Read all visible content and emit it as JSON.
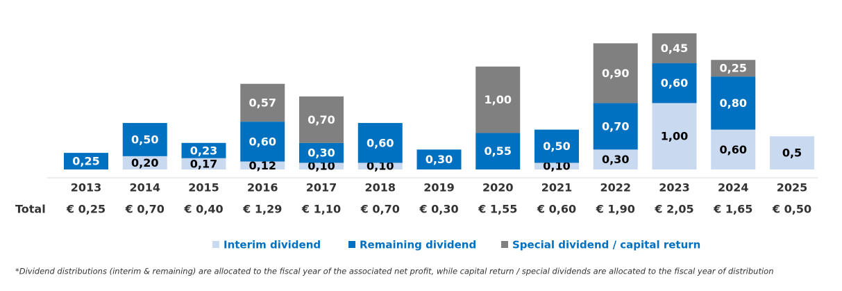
{
  "chart_data": {
    "type": "stacked-bar",
    "categories": [
      "2013",
      "2014",
      "2015",
      "2016",
      "2017",
      "2018",
      "2019",
      "2020",
      "2021",
      "2022",
      "2023",
      "2024",
      "2025"
    ],
    "series": [
      {
        "name": "Interim dividend",
        "color": "#c9daf0",
        "label_color": "#000000",
        "values": [
          null,
          0.2,
          0.17,
          0.12,
          0.1,
          0.1,
          null,
          null,
          0.1,
          0.3,
          1.0,
          0.6,
          0.5
        ],
        "value_labels": [
          null,
          "0,20",
          "0,17",
          "0,12",
          "0,10",
          "0,10",
          null,
          null,
          "0,10",
          "0,30",
          "1,00",
          "0,60",
          "0,5"
        ]
      },
      {
        "name": "Remaining dividend",
        "color": "#0070c0",
        "label_color": "#ffffff",
        "values": [
          0.25,
          0.5,
          0.23,
          0.6,
          0.3,
          0.6,
          0.3,
          0.55,
          0.5,
          0.7,
          0.6,
          0.8,
          null
        ],
        "value_labels": [
          "0,25",
          "0,50",
          "0,23",
          "0,60",
          "0,30",
          "0,60",
          "0,30",
          "0,55",
          "0,50",
          "0,70",
          "0,60",
          "0,80",
          null
        ]
      },
      {
        "name": "Special dividend / capital return",
        "color": "#808080",
        "label_color": "#ffffff",
        "values": [
          null,
          null,
          null,
          0.57,
          0.7,
          null,
          null,
          1.0,
          null,
          0.9,
          0.45,
          0.25,
          null
        ],
        "value_labels": [
          null,
          null,
          null,
          "0,57",
          "0,70",
          null,
          null,
          "1,00",
          null,
          "0,90",
          "0,45",
          "0,25",
          null
        ]
      }
    ],
    "total_label": "Total",
    "totals": [
      {
        "value": 0.25,
        "label": "€ 0,25"
      },
      {
        "value": 0.7,
        "label": "€ 0,70"
      },
      {
        "value": 0.4,
        "label": "€ 0,40"
      },
      {
        "value": 1.29,
        "label": "€ 1,29"
      },
      {
        "value": 1.1,
        "label": "€ 1,10"
      },
      {
        "value": 0.7,
        "label": "€ 0,70"
      },
      {
        "value": 0.3,
        "label": "€ 0,30"
      },
      {
        "value": 1.55,
        "label": "€ 1,55"
      },
      {
        "value": 0.6,
        "label": "€ 0,60"
      },
      {
        "value": 1.9,
        "label": "€ 1,90"
      },
      {
        "value": 2.05,
        "label": "€ 2,05"
      },
      {
        "value": 1.65,
        "label": "€ 1,65"
      },
      {
        "value": 0.5,
        "label": "€ 0,50"
      }
    ],
    "footnote": "*Dividend distributions (interim & remaining) are allocated to the fiscal year of the associated net profit, while capital return / special dividends are allocated to the fiscal year of distribution"
  }
}
